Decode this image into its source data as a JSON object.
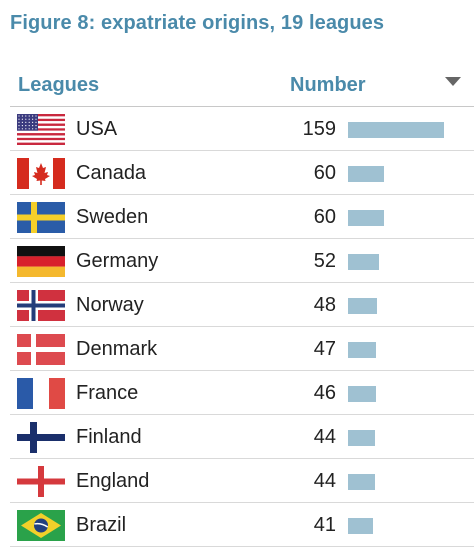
{
  "title": "Figure 8: expatriate origins, 19 leagues",
  "header": {
    "leagues_label": "Leagues",
    "number_label": "Number"
  },
  "colors": {
    "accent": "#4a8aaa",
    "bar": "#9fc1d2",
    "text": "#222222"
  },
  "chart_data": {
    "type": "table",
    "title": "Figure 8: expatriate origins, 19 leagues",
    "columns": [
      "Leagues",
      "Number"
    ],
    "sort": "descending by Number",
    "rows": [
      {
        "country": "USA",
        "value": 159,
        "flag": "usa-flag-icon"
      },
      {
        "country": "Canada",
        "value": 60,
        "flag": "canada-flag-icon"
      },
      {
        "country": "Sweden",
        "value": 60,
        "flag": "sweden-flag-icon"
      },
      {
        "country": "Germany",
        "value": 52,
        "flag": "germany-flag-icon"
      },
      {
        "country": "Norway",
        "value": 48,
        "flag": "norway-flag-icon"
      },
      {
        "country": "Denmark",
        "value": 47,
        "flag": "denmark-flag-icon"
      },
      {
        "country": "France",
        "value": 46,
        "flag": "france-flag-icon"
      },
      {
        "country": "Finland",
        "value": 44,
        "flag": "finland-flag-icon"
      },
      {
        "country": "England",
        "value": 44,
        "flag": "england-flag-icon"
      },
      {
        "country": "Brazil",
        "value": 41,
        "flag": "brazil-flag-icon"
      }
    ]
  }
}
